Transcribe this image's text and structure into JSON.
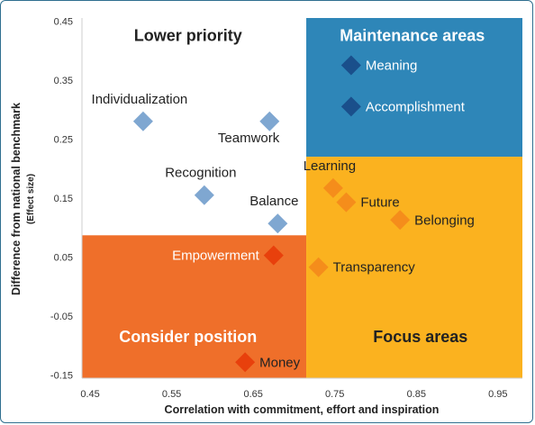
{
  "chart_data": {
    "type": "scatter",
    "xlabel": "Correlation with commitment, effort and inspiration",
    "ylabel": "Difference from national benchmark",
    "ylabel_sub": "(Effect size)",
    "xlim": [
      0.44,
      0.98
    ],
    "ylim": [
      -0.155,
      0.455
    ],
    "x_ticks": [
      0.45,
      0.55,
      0.65,
      0.75,
      0.85,
      0.95
    ],
    "x_tick_labels": [
      "0.45",
      "0.55",
      "0.65",
      "0.75",
      "0.85",
      "0.95"
    ],
    "y_ticks": [
      0.45,
      0.35,
      0.25,
      0.15,
      0.05,
      -0.05,
      -0.15
    ],
    "y_tick_labels": [
      "0.45",
      "0.35",
      "0.25",
      "0.15",
      "0.05",
      "-0.05",
      "-0.15"
    ],
    "x_divider": 0.715,
    "quadrants": [
      {
        "name": "Lower priority",
        "color": "#ffffff",
        "text_color": "#222222",
        "x": [
          0.44,
          0.715
        ],
        "y": [
          0.087,
          0.455
        ],
        "label_at": [
          0.57,
          0.425
        ]
      },
      {
        "name": "Maintenance areas",
        "color": "#2e86b8",
        "text_color": "#ffffff",
        "x": [
          0.715,
          0.98
        ],
        "y": [
          0.22,
          0.455
        ],
        "label_at": [
          0.845,
          0.425
        ]
      },
      {
        "name": "Consider position",
        "color": "#ef6f2a",
        "text_color": "#ffffff",
        "x": [
          0.44,
          0.715
        ],
        "y": [
          -0.155,
          0.087
        ],
        "label_at": [
          0.57,
          -0.085
        ]
      },
      {
        "name": "Focus areas",
        "color": "#fbb21f",
        "text_color": "#222222",
        "x": [
          0.715,
          0.98
        ],
        "y": [
          -0.155,
          0.22
        ],
        "label_at": [
          0.855,
          -0.085
        ]
      }
    ],
    "points": [
      {
        "label": "Meaning",
        "x": 0.77,
        "y": 0.375,
        "color": "#1a4f8b",
        "label_color": "#ffffff",
        "label_pos": "right"
      },
      {
        "label": "Accomplishment",
        "x": 0.77,
        "y": 0.305,
        "color": "#1a4f8b",
        "label_color": "#ffffff",
        "label_pos": "right"
      },
      {
        "label": "Individualization",
        "x": 0.515,
        "y": 0.28,
        "color": "#7fa7d1",
        "label_color": "#222222",
        "label_pos": "above"
      },
      {
        "label": "Teamwork",
        "x": 0.67,
        "y": 0.28,
        "color": "#7fa7d1",
        "label_color": "#222222",
        "label_pos": "below-left"
      },
      {
        "label": "Recognition",
        "x": 0.59,
        "y": 0.155,
        "color": "#7fa7d1",
        "label_color": "#222222",
        "label_pos": "above"
      },
      {
        "label": "Balance",
        "x": 0.68,
        "y": 0.107,
        "color": "#7fa7d1",
        "label_color": "#222222",
        "label_pos": "above"
      },
      {
        "label": "Learning",
        "x": 0.748,
        "y": 0.167,
        "color": "#f58d1b",
        "label_color": "#222222",
        "label_pos": "above"
      },
      {
        "label": "Future",
        "x": 0.764,
        "y": 0.143,
        "color": "#f58d1b",
        "label_color": "#222222",
        "label_pos": "right"
      },
      {
        "label": "Belonging",
        "x": 0.83,
        "y": 0.113,
        "color": "#f58d1b",
        "label_color": "#222222",
        "label_pos": "right"
      },
      {
        "label": "Transparency",
        "x": 0.73,
        "y": 0.033,
        "color": "#f58d1b",
        "label_color": "#222222",
        "label_pos": "right"
      },
      {
        "label": "Empowerment",
        "x": 0.675,
        "y": 0.053,
        "color": "#e8400c",
        "label_color": "#ffffff",
        "label_pos": "left"
      },
      {
        "label": "Money",
        "x": 0.64,
        "y": -0.128,
        "color": "#e8400c",
        "label_color": "#222222",
        "label_pos": "right"
      }
    ],
    "grid": false,
    "legend": "none"
  }
}
